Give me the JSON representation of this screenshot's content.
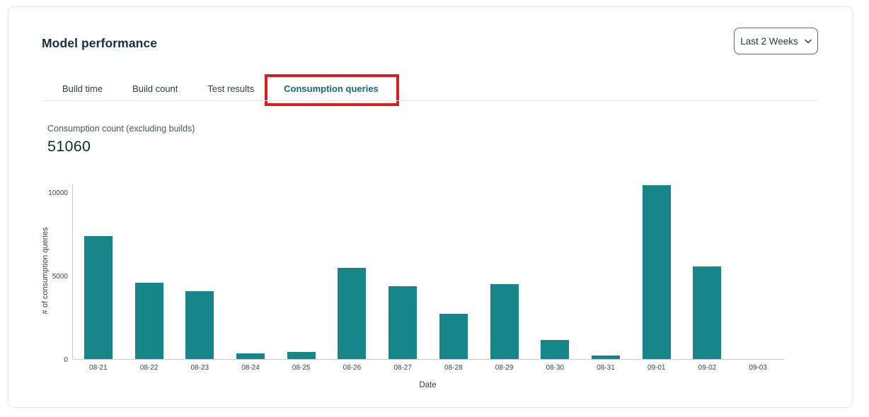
{
  "header": {
    "title": "Model performance",
    "time_range": {
      "value": "Last 2 Weeks",
      "icon": "chevron-down"
    }
  },
  "tabs": [
    {
      "label": "Build time",
      "active": false,
      "annotated": false
    },
    {
      "label": "Build count",
      "active": false,
      "annotated": false
    },
    {
      "label": "Test results",
      "active": false,
      "annotated": false
    },
    {
      "label": "Consumption queries",
      "active": true,
      "annotated": true
    }
  ],
  "annotation": {
    "shape": "red-box",
    "color": "#dd1d1d",
    "target": "Consumption queries"
  },
  "metric": {
    "label": "Consumption count (excluding builds)",
    "value": "51060"
  },
  "chart_data": {
    "type": "bar",
    "title": "",
    "categories": [
      "08-21",
      "08-22",
      "08-23",
      "08-24",
      "08-25",
      "08-26",
      "08-27",
      "08-28",
      "08-29",
      "08-30",
      "08-31",
      "09-01",
      "09-02",
      "09-03"
    ],
    "values": [
      7350,
      4570,
      4050,
      320,
      440,
      5480,
      4350,
      2700,
      4480,
      1150,
      220,
      10400,
      5550,
      0
    ],
    "xlabel": "Date",
    "ylabel": "# of consumption queries",
    "yticks": [
      0,
      5000,
      10000
    ],
    "ylim": [
      0,
      10500
    ],
    "bar_color": "#16868b",
    "grid": false,
    "legend": false
  },
  "colors": {
    "accent_teal": "#16868b",
    "active_tab_text": "#0f6d75",
    "annotation_red": "#dd1d1d"
  }
}
